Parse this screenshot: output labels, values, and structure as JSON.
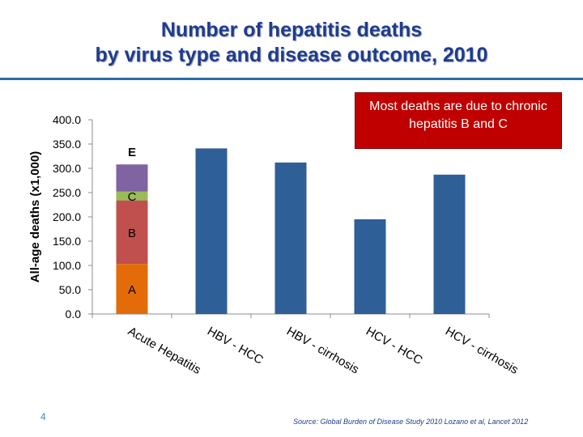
{
  "slide": {
    "title_line1": "Number of hepatitis deaths",
    "title_line2": "by virus type and disease outcome, 2010",
    "callout": "Most deaths are due to chronic hepatitis B and C",
    "page_number": "4",
    "source": "Source: Global Burden of Disease Study 2010 Lozano et al, Lancet 2012"
  },
  "colors": {
    "title": "#1f3c8c",
    "rule": "#2a6ca8",
    "callout_bg": "#c00000",
    "bar_blue": "#2e5f96",
    "seg_A": "#e36c09",
    "seg_B": "#c0504d",
    "seg_C": "#9bbb59",
    "seg_E": "#8064a2",
    "label_E": "#1f3c8c"
  },
  "chart_data": {
    "type": "bar",
    "ylabel": "All-age deaths (x1,000)",
    "xlabel": "",
    "ylim": [
      0,
      400
    ],
    "yticks": [
      "0.0",
      "50.0",
      "100.0",
      "150.0",
      "200.0",
      "250.0",
      "300.0",
      "350.0",
      "400.0"
    ],
    "categories": [
      "Acute Hepatitis",
      "HBV - HCC",
      "HBV - cirrhosis",
      "HCV - HCC",
      "HCV - cirrhosis"
    ],
    "stacked_bar": {
      "category": "Acute Hepatitis",
      "segments": [
        {
          "label": "A",
          "value": 103
        },
        {
          "label": "B",
          "value": 131
        },
        {
          "label": "C",
          "value": 18
        },
        {
          "label": "E",
          "value": 56
        }
      ]
    },
    "values": [
      308,
      341,
      312,
      195,
      287
    ]
  }
}
